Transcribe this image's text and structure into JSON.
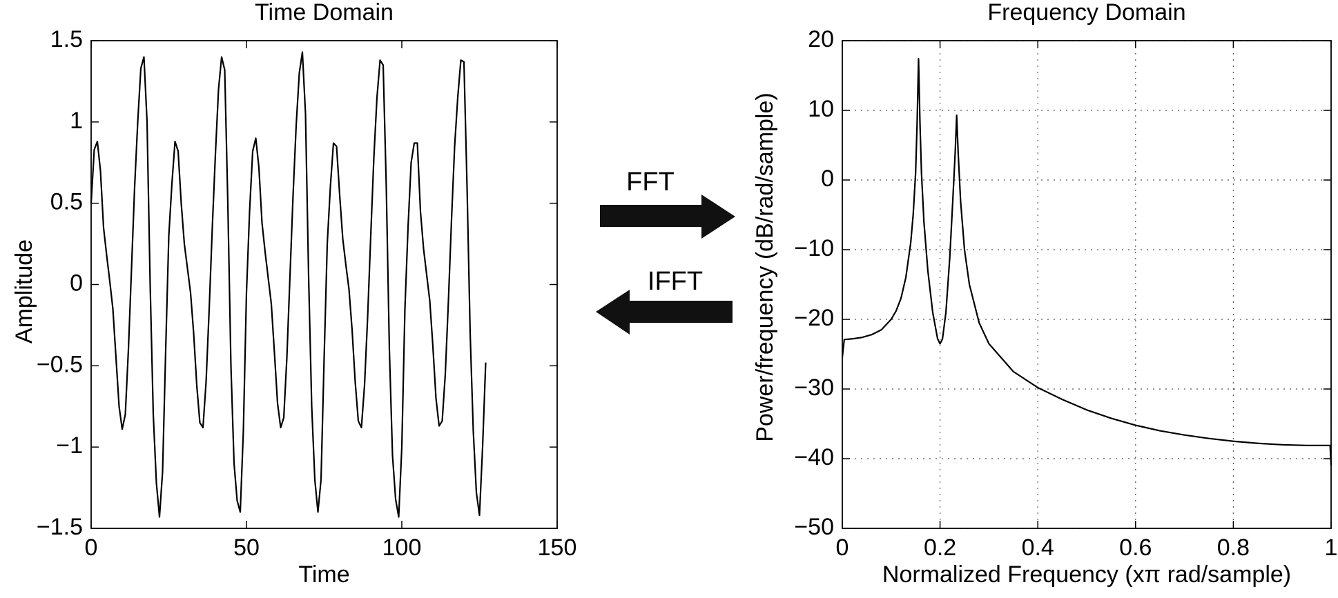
{
  "chart_data": [
    {
      "type": "line",
      "title": "Time Domain",
      "x_label": "Time",
      "y_label": "Amplitude",
      "x": [
        0,
        1,
        2,
        3,
        4,
        5,
        6,
        7,
        8,
        9,
        10,
        11,
        12,
        13,
        14,
        15,
        16,
        17,
        18,
        19,
        20,
        21,
        22,
        23,
        24,
        25,
        26,
        27,
        28,
        29,
        30,
        31,
        32,
        33,
        34,
        35,
        36,
        37,
        38,
        39,
        40,
        41,
        42,
        43,
        44,
        45,
        46,
        47,
        48,
        49,
        50,
        51,
        52,
        53,
        54,
        55,
        56,
        57,
        58,
        59,
        60,
        61,
        62,
        63,
        64,
        65,
        66,
        67,
        68,
        69,
        70,
        71,
        72,
        73,
        74,
        75,
        76,
        77,
        78,
        79,
        80,
        81,
        82,
        83,
        84,
        85,
        86,
        87,
        88,
        89,
        90,
        91,
        92,
        93,
        94,
        95,
        96,
        97,
        98,
        99,
        100,
        101,
        102,
        103,
        104,
        105,
        106,
        107,
        108,
        109,
        110,
        111,
        112,
        113,
        114,
        115,
        116,
        117,
        118,
        119,
        120,
        121,
        122,
        123,
        124,
        125,
        126,
        127
      ],
      "values": [
        0.5,
        0.83,
        0.88,
        0.7,
        0.35,
        0.18,
        0.02,
        -0.15,
        -0.45,
        -0.75,
        -0.89,
        -0.8,
        -0.4,
        0.1,
        0.6,
        1.0,
        1.33,
        1.4,
        1.0,
        0.0,
        -0.8,
        -1.22,
        -1.43,
        -1.15,
        -0.4,
        0.3,
        0.62,
        0.88,
        0.82,
        0.5,
        0.25,
        0.1,
        -0.05,
        -0.3,
        -0.62,
        -0.85,
        -0.88,
        -0.6,
        -0.15,
        0.35,
        0.8,
        1.2,
        1.4,
        1.32,
        0.5,
        -0.5,
        -1.1,
        -1.33,
        -1.4,
        -0.9,
        -0.05,
        0.45,
        0.82,
        0.9,
        0.72,
        0.38,
        0.2,
        0.04,
        -0.12,
        -0.42,
        -0.73,
        -0.88,
        -0.82,
        -0.45,
        0.05,
        0.55,
        0.98,
        1.3,
        1.43,
        1.05,
        0.05,
        -0.75,
        -1.2,
        -1.4,
        -1.2,
        -0.45,
        0.25,
        0.6,
        0.87,
        0.85,
        0.55,
        0.28,
        0.12,
        -0.03,
        -0.28,
        -0.6,
        -0.84,
        -0.88,
        -0.62,
        -0.2,
        0.3,
        0.78,
        1.15,
        1.38,
        1.35,
        0.6,
        -0.4,
        -1.05,
        -1.32,
        -1.43,
        -1.0,
        -0.15,
        0.35,
        0.75,
        0.87,
        0.87,
        0.45,
        0.22,
        0.06,
        -0.1,
        -0.38,
        -0.7,
        -0.87,
        -0.84,
        -0.55,
        -0.1,
        0.4,
        0.85,
        1.15,
        1.38,
        1.37,
        0.6,
        -0.3,
        -0.9,
        -1.28,
        -1.42,
        -1.0,
        -0.48
      ],
      "color": "#000000",
      "xlim": [
        0,
        150
      ],
      "xticks": [
        0,
        50,
        100,
        150
      ],
      "ylim": [
        -1.5,
        1.5
      ],
      "yticks": [
        {
          "value": -1.5,
          "label": "−1.5"
        },
        {
          "value": -1,
          "label": "−1"
        },
        {
          "value": -0.5,
          "label": "−0.5"
        },
        0,
        0.5,
        1,
        1.5
      ],
      "grid": false
    },
    {
      "type": "line",
      "title": "Frequency Domain",
      "x_label": "Normalized Frequency (xπ rad/sample)",
      "y_label": "Power/frequency (dB/rad/sample)",
      "x": [
        0,
        0.004,
        0.02,
        0.04,
        0.06,
        0.08,
        0.1,
        0.11,
        0.12,
        0.13,
        0.14,
        0.145,
        0.15,
        0.153,
        0.156,
        0.159,
        0.162,
        0.167,
        0.175,
        0.185,
        0.195,
        0.2,
        0.205,
        0.212,
        0.22,
        0.226,
        0.231,
        0.234,
        0.237,
        0.242,
        0.25,
        0.26,
        0.28,
        0.3,
        0.35,
        0.4,
        0.45,
        0.5,
        0.55,
        0.6,
        0.65,
        0.7,
        0.75,
        0.8,
        0.85,
        0.9,
        0.95,
        0.998,
        1
      ],
      "values": [
        -25.5,
        -22.9,
        -22.8,
        -22.6,
        -22.2,
        -21.5,
        -20,
        -18.8,
        -17,
        -14,
        -9,
        -5,
        1,
        8,
        17.4,
        8,
        1,
        -6,
        -13,
        -19,
        -22.8,
        -23.5,
        -22.8,
        -19,
        -11,
        -3,
        4,
        9.3,
        4,
        -3,
        -10,
        -15,
        -20.5,
        -23.5,
        -27.5,
        -29.8,
        -31.5,
        -33,
        -34.2,
        -35.2,
        -36,
        -36.6,
        -37.1,
        -37.5,
        -37.8,
        -38,
        -38.1,
        -38.1,
        -41
      ],
      "color": "#000000",
      "xlim": [
        0,
        1
      ],
      "xticks": [
        0,
        0.2,
        0.4,
        0.6,
        0.8,
        1
      ],
      "ylim": [
        -50,
        20
      ],
      "yticks": [
        {
          "value": -50,
          "label": "−50"
        },
        {
          "value": -40,
          "label": "−40"
        },
        {
          "value": -30,
          "label": "−30"
        },
        {
          "value": -20,
          "label": "−20"
        },
        {
          "value": -10,
          "label": "−10"
        },
        0,
        10,
        20
      ],
      "grid": true
    }
  ],
  "annotations": {
    "forward": "FFT",
    "inverse": "IFFT"
  }
}
